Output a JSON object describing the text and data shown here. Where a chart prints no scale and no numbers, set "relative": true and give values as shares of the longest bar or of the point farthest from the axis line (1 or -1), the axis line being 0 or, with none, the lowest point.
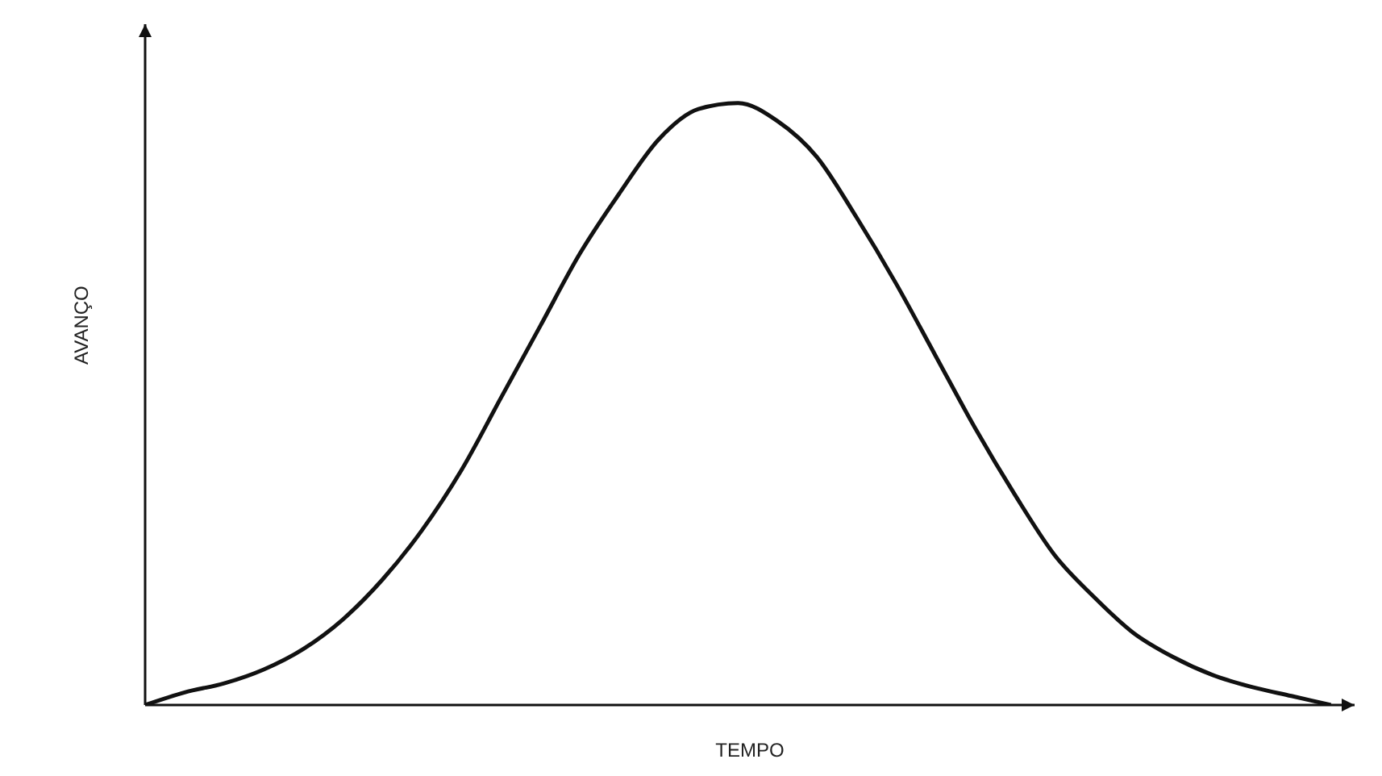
{
  "chart_data": {
    "type": "line",
    "relative": true,
    "xlabel": "TEMPO",
    "ylabel": "AVANÇO",
    "marker": "none",
    "line_style": "solid",
    "categories": [
      null,
      null,
      null,
      null,
      null,
      null,
      null,
      null,
      null,
      null,
      null,
      null,
      null,
      null,
      null,
      null,
      null,
      null,
      null,
      null,
      null,
      null,
      null,
      null,
      null,
      null,
      null,
      null,
      null,
      null,
      null
    ],
    "series": [
      {
        "color": "#111111",
        "values": [
          0,
          0.021,
          0.036,
          0.059,
          0.093,
          0.142,
          0.208,
          0.29,
          0.39,
          0.51,
          0.63,
          0.75,
          0.85,
          0.94,
          0.99,
          1,
          0.97,
          0.91,
          0.81,
          0.7,
          0.58,
          0.46,
          0.35,
          0.25,
          0.18,
          0.12,
          0.08,
          0.05,
          0.03,
          0.015,
          0
        ]
      }
    ]
  }
}
